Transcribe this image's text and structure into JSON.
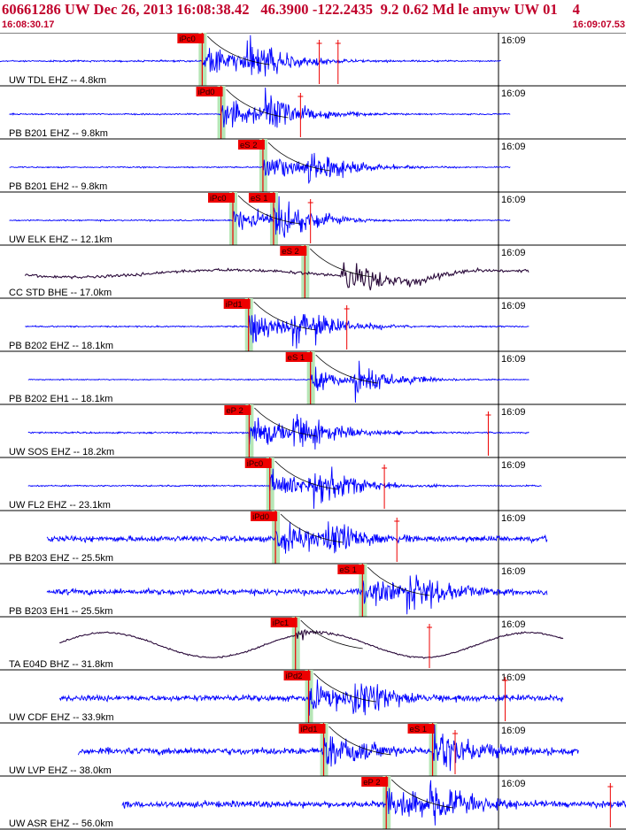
{
  "header": {
    "title": "60661286 UW Dec 26, 2013 16:08:38.42   46.3900 -122.2435  9.2 0.62 Md le amyw UW 01    4",
    "start_time": "16:08:30.17",
    "end_time": "16:09:07.53"
  },
  "minute_label": "16:09",
  "colors": {
    "trace_short": "#0000ff",
    "trace_broadband": "#2a0a3a",
    "pick_flag": "#ee0000",
    "pick_text": "#220000",
    "pick_band": "#b6e6b6",
    "label_text": "#000000",
    "title": "#c0002a"
  },
  "traces": [
    {
      "label": "UW TDL EHZ -- 4.8km",
      "type": "short",
      "picks": [
        {
          "text": "iPc0",
          "t": 0.323
        }
      ],
      "extra_marks": [
        0.51,
        0.54
      ],
      "amp": 1.0
    },
    {
      "label": "PB B201 EHZ -- 9.8km",
      "type": "short",
      "picks": [
        {
          "text": "iPd0",
          "t": 0.353
        }
      ],
      "extra_marks": [
        0.48
      ],
      "amp": 0.9
    },
    {
      "label": "PB B201 EH2 -- 9.8km",
      "type": "short",
      "picks": [
        {
          "text": "eS 2",
          "t": 0.42
        }
      ],
      "extra_marks": [],
      "amp": 0.8
    },
    {
      "label": "UW ELK EHZ -- 12.1km",
      "type": "short",
      "picks": [
        {
          "text": "iPc0",
          "t": 0.372
        },
        {
          "text": "eS 1",
          "t": 0.437
        }
      ],
      "extra_marks": [
        0.496
      ],
      "amp": 0.9
    },
    {
      "label": "CC STD BHE -- 17.0km",
      "type": "broad",
      "picks": [
        {
          "text": "eS 2",
          "t": 0.487
        }
      ],
      "extra_marks": [],
      "amp": 1.0
    },
    {
      "label": "PB B202 EHZ -- 18.1km",
      "type": "short",
      "picks": [
        {
          "text": "iPd1",
          "t": 0.397
        }
      ],
      "extra_marks": [
        0.554
      ],
      "amp": 0.9
    },
    {
      "label": "PB B202 EH1 -- 18.1km",
      "type": "short",
      "picks": [
        {
          "text": "eS 1",
          "t": 0.496
        }
      ],
      "extra_marks": [],
      "amp": 0.7
    },
    {
      "label": "UW SOS EHZ -- 18.2km",
      "type": "short",
      "picks": [
        {
          "text": "eP 2",
          "t": 0.398
        }
      ],
      "extra_marks": [
        0.78
      ],
      "amp": 1.0
    },
    {
      "label": "UW FL2 EHZ -- 23.1km",
      "type": "short",
      "picks": [
        {
          "text": "iPc0",
          "t": 0.431
        }
      ],
      "extra_marks": [
        0.614
      ],
      "amp": 0.9
    },
    {
      "label": "PB B203 EHZ -- 25.5km",
      "type": "short",
      "picks": [
        {
          "text": "iPd0",
          "t": 0.44
        }
      ],
      "extra_marks": [
        0.634
      ],
      "amp": 1.0
    },
    {
      "label": "PB B203 EH1 -- 25.5km",
      "type": "short",
      "picks": [
        {
          "text": "eS 1",
          "t": 0.579
        }
      ],
      "extra_marks": [],
      "amp": 1.0
    },
    {
      "label": "TA E04D BHZ -- 31.8km",
      "type": "broad2",
      "picks": [
        {
          "text": "iPc1",
          "t": 0.472
        }
      ],
      "extra_marks": [
        0.686
      ],
      "amp": 1.0
    },
    {
      "label": "UW CDF EHZ -- 33.9km",
      "type": "short",
      "picks": [
        {
          "text": "iPd2",
          "t": 0.493
        }
      ],
      "extra_marks": [
        0.807
      ],
      "amp": 1.0
    },
    {
      "label": "UW LVP EHZ -- 38.0km",
      "type": "short",
      "picks": [
        {
          "text": "iPd1",
          "t": 0.517
        },
        {
          "text": "eS 1",
          "t": 0.691
        }
      ],
      "extra_marks": [
        0.727
      ],
      "amp": 1.2
    },
    {
      "label": "UW ASR EHZ -- 56.0km",
      "type": "short",
      "picks": [
        {
          "text": "eP 2",
          "t": 0.617
        }
      ],
      "extra_marks": [
        0.975
      ],
      "amp": 1.1
    }
  ]
}
